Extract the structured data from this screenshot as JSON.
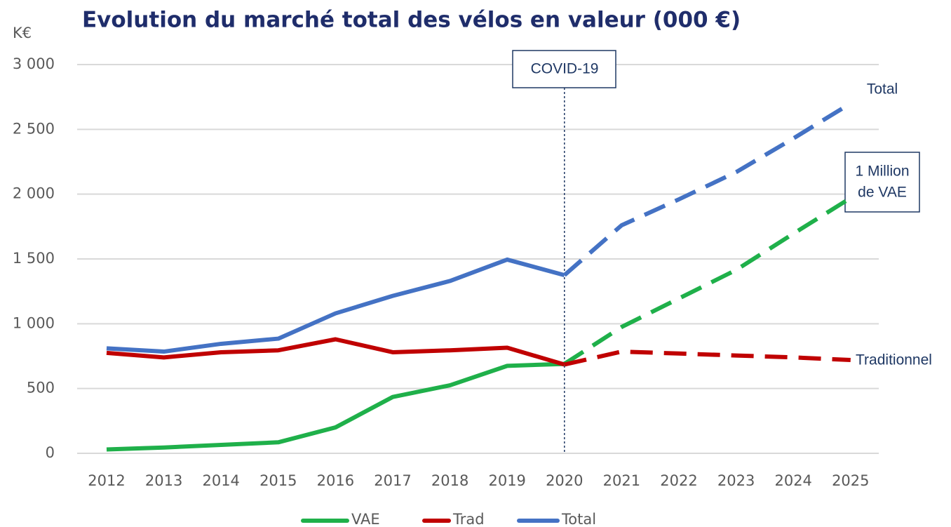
{
  "chart_data": {
    "type": "line",
    "title": "Evolution du marché total des vélos en valeur (000 €)",
    "y_axis_label": "K€",
    "categories": [
      "2012",
      "2013",
      "2014",
      "2015",
      "2016",
      "2017",
      "2018",
      "2019",
      "2020",
      "2021",
      "2022",
      "2023",
      "2024",
      "2025"
    ],
    "projection_from": "2020",
    "series": [
      {
        "name": "VAE",
        "color": "#1fb04a",
        "values": [
          30,
          45,
          65,
          85,
          200,
          435,
          525,
          675,
          690,
          975,
          1195,
          1415,
          1695,
          1970
        ]
      },
      {
        "name": "Trad",
        "color": "#c00000",
        "values": [
          775,
          740,
          780,
          795,
          880,
          780,
          795,
          815,
          685,
          785,
          770,
          755,
          740,
          720
        ]
      },
      {
        "name": "Total",
        "color": "#4472c4",
        "values": [
          810,
          785,
          845,
          885,
          1080,
          1215,
          1330,
          1495,
          1375,
          1760,
          1960,
          2170,
          2430,
          2700
        ]
      }
    ],
    "ylim": [
      0,
      3000
    ],
    "yticks": [
      0,
      500,
      {
        "value": 1000,
        "label": "1 000"
      },
      {
        "value": 1500,
        "label": "1 500"
      },
      {
        "value": 2000,
        "label": "2 000"
      },
      {
        "value": 2500,
        "label": "2 500"
      },
      {
        "value": 3000,
        "label": "3 000"
      }
    ],
    "grid": true,
    "legend": "bottom",
    "annotations": [
      {
        "text": "COVID-19",
        "x": "2020"
      },
      {
        "text": "Total"
      },
      {
        "text": [
          "1 Million",
          "de VAE"
        ]
      },
      {
        "text": "Traditionnel"
      }
    ]
  }
}
